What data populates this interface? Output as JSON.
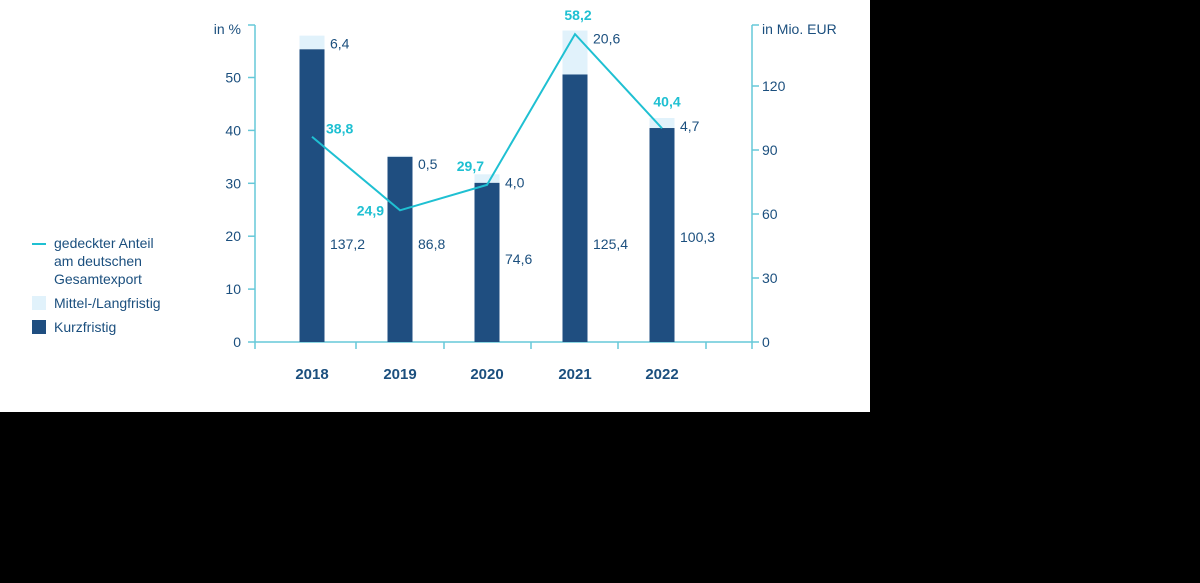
{
  "chart_data": {
    "type": "bar",
    "categories": [
      "2018",
      "2019",
      "2020",
      "2021",
      "2022"
    ],
    "series": [
      {
        "name": "Kurzfristig",
        "kind": "stacked-bar",
        "axis": "right",
        "values": [
          137.2,
          86.8,
          74.6,
          125.4,
          100.3
        ],
        "labels": [
          "137,2",
          "86,8",
          "74,6",
          "125,4",
          "100,3"
        ]
      },
      {
        "name": "Mittel-/Langfristig",
        "kind": "stacked-bar",
        "axis": "right",
        "values": [
          6.4,
          0.5,
          4.0,
          20.6,
          4.7
        ],
        "labels": [
          "6,4",
          "0,5",
          "4,0",
          "20,6",
          "4,7"
        ]
      },
      {
        "name": "gedeckter Anteil\nam deutschen\nGesamtexport",
        "kind": "line",
        "axis": "left",
        "values": [
          38.8,
          24.9,
          29.7,
          58.2,
          40.4
        ],
        "labels": [
          "38,8",
          "24,9",
          "29,7",
          "58,2",
          "40,4"
        ]
      }
    ],
    "y_left": {
      "label": "in %",
      "ticks": [
        "0",
        "10",
        "20",
        "30",
        "40",
        "50"
      ]
    },
    "y_right": {
      "label": "in Mio. EUR",
      "ticks": [
        "0",
        "30",
        "60",
        "90",
        "120"
      ],
      "ylim": [
        0,
        146.5
      ]
    },
    "legend_position": "left",
    "colors": {
      "kurzfristig": "#1f4e80",
      "mittel_langfristig": "#e1f2fb",
      "line": "#1fc0d2",
      "axis": "#66c8d8",
      "text": "#1b4f7e"
    }
  },
  "legend": {
    "line_label": "gedeckter Anteil\nam deutschen\nGesamtexport",
    "mittel_label": "Mittel-/Langfristig",
    "kurz_label": "Kurzfristig"
  }
}
